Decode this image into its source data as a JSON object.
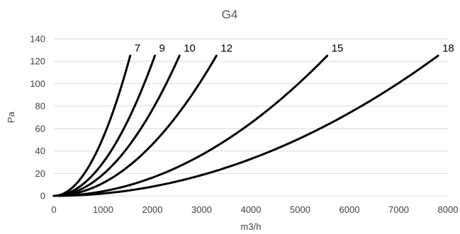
{
  "chart_data": {
    "type": "line",
    "title": "G4",
    "xlabel": "m3/h",
    "ylabel": "Pa",
    "xlim": [
      0,
      8000
    ],
    "ylim": [
      0,
      140
    ],
    "x_ticks": [
      0,
      1000,
      2000,
      3000,
      4000,
      5000,
      6000,
      7000,
      8000
    ],
    "y_ticks": [
      0,
      20,
      40,
      60,
      80,
      100,
      120,
      140
    ],
    "grid": "horizontal",
    "legend": "none",
    "series": [
      {
        "name": "7",
        "end_x": 1550,
        "end_y": 125,
        "exponent": 2
      },
      {
        "name": "9",
        "end_x": 2050,
        "end_y": 125,
        "exponent": 2
      },
      {
        "name": "10",
        "end_x": 2550,
        "end_y": 125,
        "exponent": 2
      },
      {
        "name": "12",
        "end_x": 3300,
        "end_y": 125,
        "exponent": 2
      },
      {
        "name": "15",
        "end_x": 5550,
        "end_y": 125,
        "exponent": 2
      },
      {
        "name": "18",
        "end_x": 7800,
        "end_y": 125,
        "exponent": 2
      }
    ],
    "line_color": "#000000",
    "grid_color": "#d9d9d9"
  }
}
